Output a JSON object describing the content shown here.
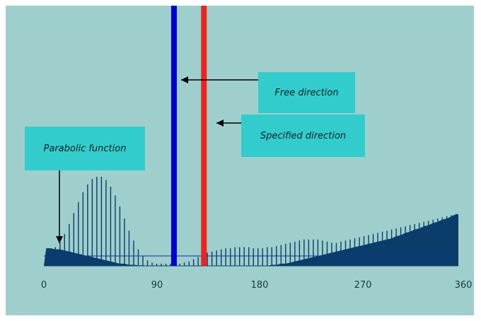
{
  "chart_data": {
    "type": "bar",
    "x_ticks": [
      "0",
      "90",
      "180",
      "270",
      "360"
    ],
    "xlim": [
      0,
      360
    ],
    "ylim": [
      0,
      1
    ],
    "bin_step": 4,
    "series": [
      {
        "values": [
          0.1,
          0.13,
          0.17,
          0.22,
          0.29,
          0.38,
          0.48,
          0.58,
          0.67,
          0.74,
          0.79,
          0.81,
          0.81,
          0.78,
          0.72,
          0.64,
          0.54,
          0.43,
          0.32,
          0.23,
          0.15,
          0.09,
          0.05,
          0.03,
          0.02,
          0.02,
          0.02,
          0.02,
          0.02,
          0.02,
          0.03,
          0.04,
          0.06,
          0.08,
          0.1,
          0.12,
          0.13,
          0.14,
          0.15,
          0.16,
          0.16,
          0.17,
          0.17,
          0.17,
          0.17,
          0.16,
          0.16,
          0.16,
          0.17,
          0.17,
          0.18,
          0.19,
          0.2,
          0.21,
          0.22,
          0.23,
          0.24,
          0.24,
          0.24,
          0.24,
          0.23,
          0.22,
          0.21,
          0.21,
          0.22,
          0.23,
          0.24,
          0.25,
          0.26,
          0.27,
          0.28,
          0.29,
          0.3,
          0.31,
          0.32,
          0.33,
          0.34,
          0.35,
          0.36,
          0.37,
          0.38,
          0.39,
          0.4,
          0.41,
          0.42,
          0.43,
          0.44,
          0.45,
          0.46,
          0.47
        ]
      },
      {
        "values": [
          0.16,
          0.16,
          0.15,
          0.15,
          0.14,
          0.13,
          0.12,
          0.11,
          0.1,
          0.09,
          0.08,
          0.07,
          0.06,
          0.05,
          0.04,
          0.03,
          0.02,
          0.02,
          0.01,
          0.01,
          0.005,
          0.005,
          0.0,
          0.0,
          0.0,
          0.0,
          0.0,
          0.0,
          0.0,
          0.0,
          0.0,
          0.0,
          0.0,
          0.0,
          0.0,
          0.0,
          0.0,
          0.0,
          0.0,
          0.0,
          0.0,
          0.0,
          0.0,
          0.0,
          0.0,
          0.0,
          0.0,
          0.0,
          0.0,
          0.01,
          0.01,
          0.02,
          0.02,
          0.03,
          0.04,
          0.05,
          0.06,
          0.07,
          0.08,
          0.09,
          0.1,
          0.11,
          0.12,
          0.13,
          0.14,
          0.15,
          0.16,
          0.17,
          0.18,
          0.19,
          0.2,
          0.21,
          0.22,
          0.23,
          0.24,
          0.25,
          0.27,
          0.28,
          0.3,
          0.31,
          0.33,
          0.34,
          0.36,
          0.37,
          0.39,
          0.4,
          0.42,
          0.43,
          0.45,
          0.47
        ]
      }
    ],
    "threshold": 0.09,
    "markers": [
      {
        "x": 113,
        "color": "#0000cc"
      },
      {
        "x": 139,
        "color": "#ee2222"
      }
    ],
    "annotations": {
      "free": "Free direction",
      "specified": "Specified direction",
      "parabolic": "Parabolic function"
    },
    "colors": {
      "background": "#9ecfcc",
      "bars": "#0b3d6b",
      "fill": "#0b3d6b",
      "callout": "#33cccc"
    }
  }
}
